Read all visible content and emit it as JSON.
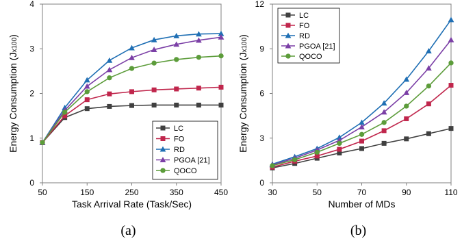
{
  "chart_data": [
    {
      "type": "line",
      "panel_label": "(a)",
      "xlabel": "Task Arrival Rate (Task/Sec)",
      "ylabel": "Energy Consumption (J",
      "ylabel_unit": "x100",
      "ylabel_close": ")",
      "x": [
        50,
        100,
        150,
        200,
        250,
        300,
        350,
        400,
        450
      ],
      "xticks": [
        50,
        150,
        250,
        350,
        450
      ],
      "yticks": [
        0,
        1,
        2,
        3,
        4
      ],
      "xlim": [
        50,
        450
      ],
      "ylim": [
        0,
        4
      ],
      "legend_position": "bottom-right",
      "grid": false,
      "series": [
        {
          "name": "LC",
          "color": "#404040",
          "marker": "square",
          "values": [
            0.9,
            1.46,
            1.66,
            1.71,
            1.73,
            1.74,
            1.74,
            1.74,
            1.74
          ]
        },
        {
          "name": "FO",
          "color": "#c0264c",
          "marker": "square",
          "values": [
            0.9,
            1.5,
            1.86,
            1.99,
            2.04,
            2.08,
            2.1,
            2.12,
            2.14
          ]
        },
        {
          "name": "RD",
          "color": "#1f6fb4",
          "marker": "triangle",
          "values": [
            0.9,
            1.68,
            2.3,
            2.74,
            3.02,
            3.2,
            3.29,
            3.33,
            3.34
          ]
        },
        {
          "name": "PGOA [21]",
          "color": "#7b3fa6",
          "marker": "triangle",
          "values": [
            0.9,
            1.62,
            2.16,
            2.53,
            2.8,
            2.98,
            3.1,
            3.19,
            3.26
          ]
        },
        {
          "name": "QOCO",
          "color": "#5c9c3a",
          "marker": "circle",
          "values": [
            0.9,
            1.58,
            2.04,
            2.35,
            2.56,
            2.68,
            2.76,
            2.81,
            2.84
          ]
        }
      ]
    },
    {
      "type": "line",
      "panel_label": "(b)",
      "xlabel": "Number of MDs",
      "ylabel": "Energy Consumption (J",
      "ylabel_unit": "x100",
      "ylabel_close": ")",
      "x": [
        30,
        40,
        50,
        60,
        70,
        80,
        90,
        100,
        110
      ],
      "xticks": [
        30,
        50,
        70,
        90,
        110
      ],
      "yticks": [
        0,
        3,
        6,
        9,
        12
      ],
      "xlim": [
        30,
        110
      ],
      "ylim": [
        0,
        12
      ],
      "legend_position": "top-left",
      "grid": false,
      "series": [
        {
          "name": "LC",
          "color": "#404040",
          "marker": "square",
          "values": [
            1.0,
            1.3,
            1.65,
            2.0,
            2.3,
            2.65,
            2.95,
            3.3,
            3.65
          ]
        },
        {
          "name": "FO",
          "color": "#c0264c",
          "marker": "square",
          "values": [
            1.05,
            1.45,
            1.8,
            2.25,
            2.8,
            3.5,
            4.3,
            5.3,
            6.55
          ]
        },
        {
          "name": "RD",
          "color": "#1f6fb4",
          "marker": "triangle",
          "values": [
            1.25,
            1.75,
            2.3,
            3.05,
            4.05,
            5.35,
            6.95,
            8.85,
            10.95
          ]
        },
        {
          "name": "PGOA [21]",
          "color": "#7b3fa6",
          "marker": "triangle",
          "values": [
            1.2,
            1.65,
            2.2,
            2.85,
            3.75,
            4.75,
            6.05,
            7.7,
            9.6
          ]
        },
        {
          "name": "QOCO",
          "color": "#5c9c3a",
          "marker": "circle",
          "values": [
            1.15,
            1.55,
            2.05,
            2.65,
            3.25,
            4.05,
            5.15,
            6.5,
            8.05
          ]
        }
      ]
    }
  ]
}
